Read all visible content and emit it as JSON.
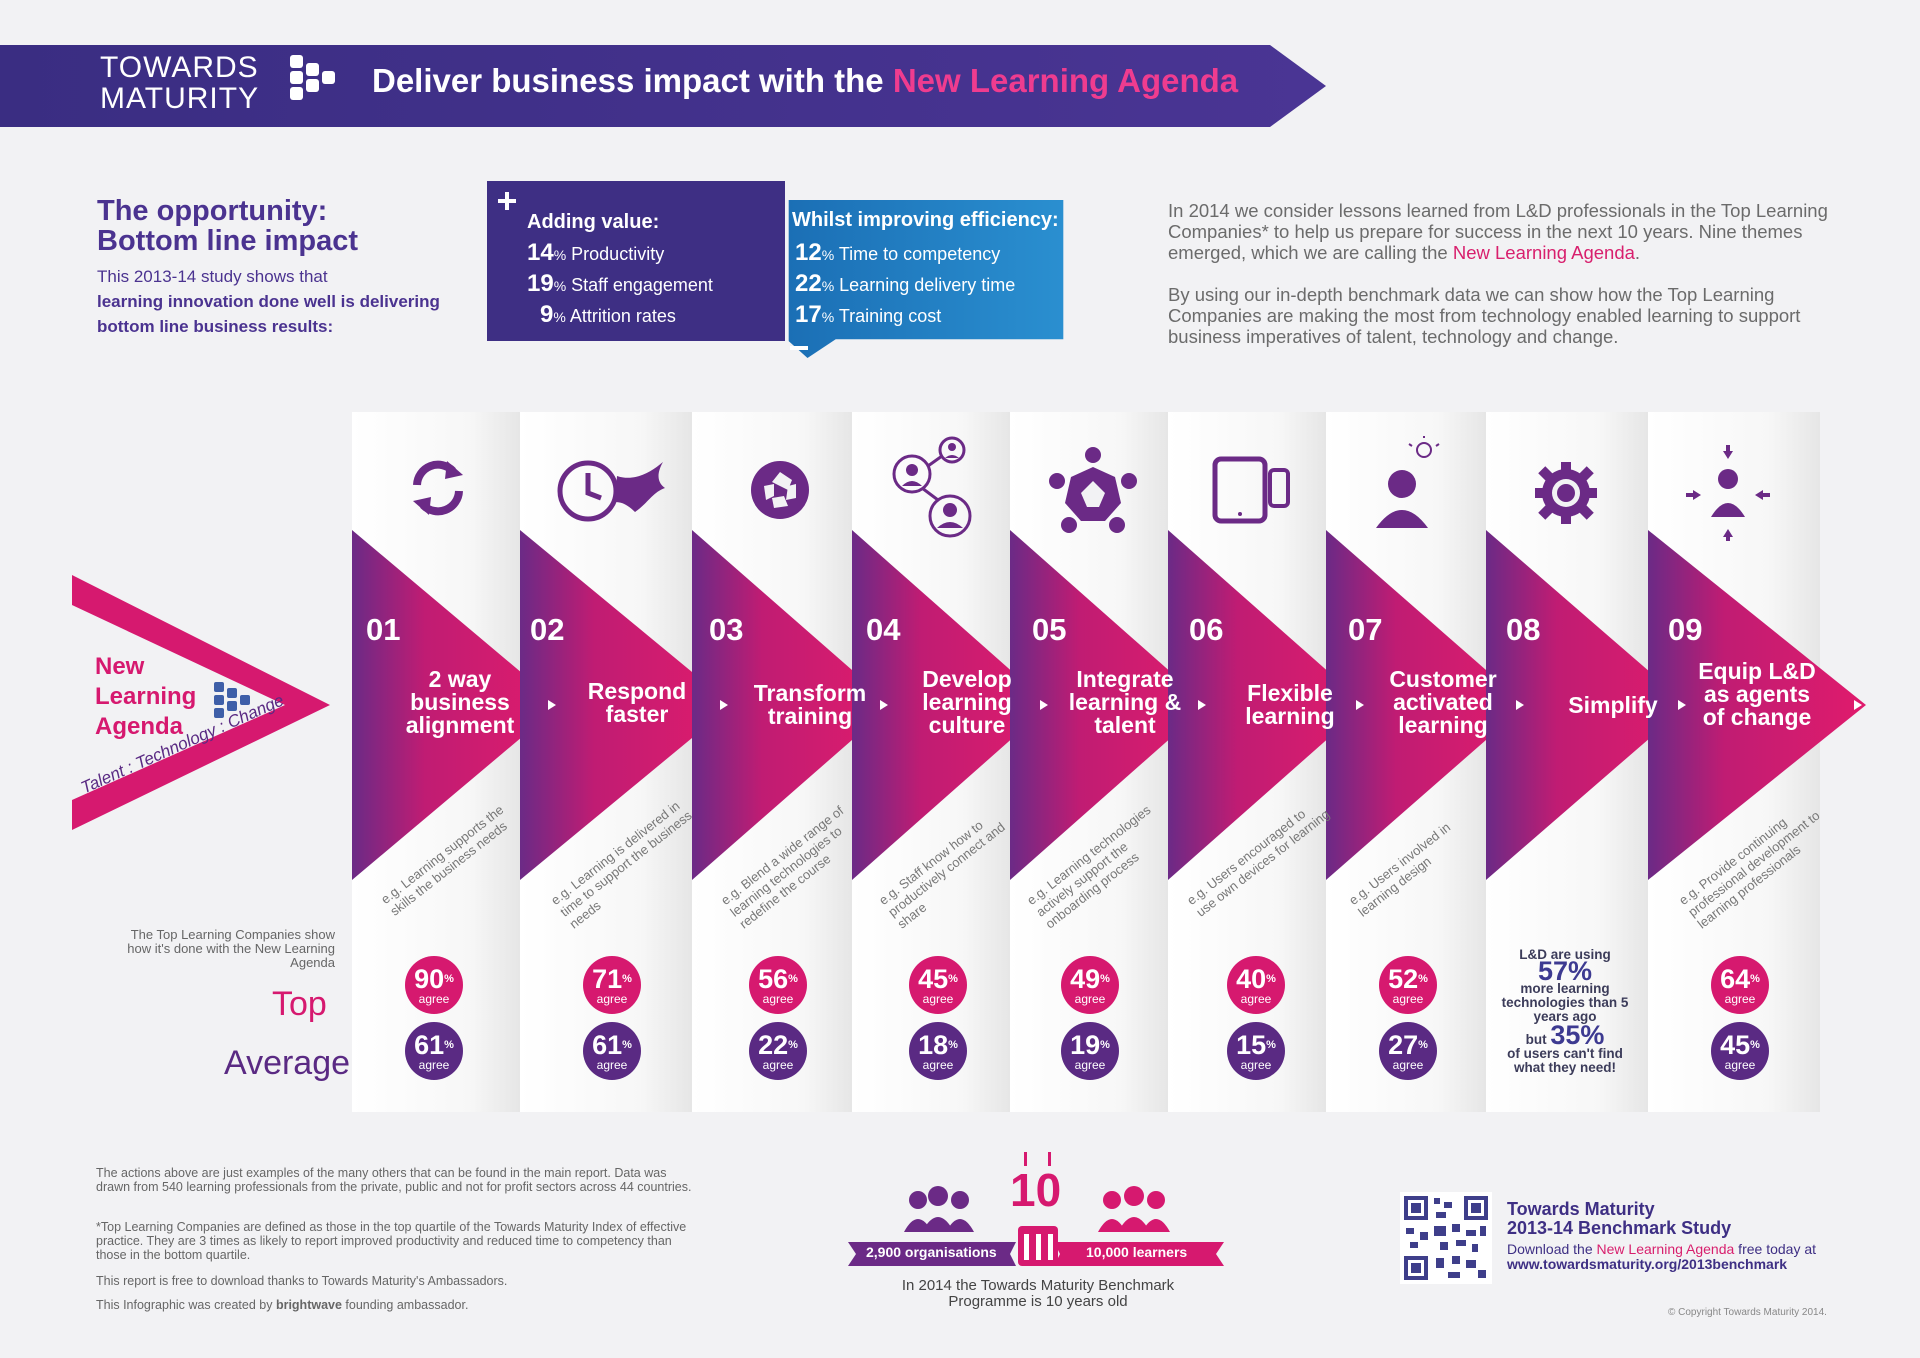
{
  "header": {
    "logo_line1": "TOWARDS",
    "logo_line2": "MATURITY",
    "title_prefix": "Deliver business impact with the ",
    "title_highlight": "New Learning Agenda"
  },
  "opportunity": {
    "heading_line1": "The opportunity:",
    "heading_line2": "Bottom line impact",
    "text_plain": "This 2013-14 study shows that",
    "text_bold": "learning innovation done well is delivering bottom line business results:"
  },
  "adding_value": {
    "title": "Adding value:",
    "items": [
      {
        "value": "14",
        "unit": "%",
        "label": " Productivity"
      },
      {
        "value": "19",
        "unit": "%",
        "label": " Staff engagement"
      },
      {
        "value": "9",
        "unit": "%",
        "label": " Attrition rates"
      }
    ]
  },
  "efficiency": {
    "title": "Whilst improving efficiency:",
    "items": [
      {
        "value": "12",
        "unit": "%",
        "label": " Time to competency"
      },
      {
        "value": "22",
        "unit": "%",
        "label": " Learning delivery time"
      },
      {
        "value": "17",
        "unit": "%",
        "label": " Training cost"
      }
    ]
  },
  "intro": {
    "p1_a": "In 2014 we consider lessons learned from L&D professionals in the Top Learning Companies* to help us prepare for success in the next 10 years. Nine themes emerged, which we are calling the ",
    "p1_highlight": "New Learning Agenda",
    "p1_b": ".",
    "p2": "By using our in-depth benchmark data we can show how the Top Learning Companies are making the most from technology enabled learning to support business imperatives of talent, technology and change."
  },
  "agenda": {
    "line1": "New",
    "line2": "Learning",
    "line3": "Agenda",
    "tagline": "Talent : Technology : Change"
  },
  "themes": [
    {
      "num": "01",
      "title": "2 way business alignment",
      "example": "e.g. Learning supports the skills the business needs",
      "top": "90",
      "avg": "61",
      "icon": "sync-arrows-icon"
    },
    {
      "num": "02",
      "title": "Respond faster",
      "example": "e.g. Learning is delivered in time to support the business needs",
      "top": "71",
      "avg": "61",
      "icon": "fast-clock-icon"
    },
    {
      "num": "03",
      "title": "Transform training",
      "example": "e.g. Blend a wide range of learning technologies to redefine the course",
      "top": "56",
      "avg": "22",
      "icon": "shutter-icon"
    },
    {
      "num": "04",
      "title": "Develop learning culture",
      "example": "e.g. Staff know how to productively connect and share",
      "top": "45",
      "avg": "18",
      "icon": "connected-people-icon"
    },
    {
      "num": "05",
      "title": "Integrate learning & talent",
      "example": "e.g. Learning technologies actively support the onboarding process",
      "top": "49",
      "avg": "19",
      "icon": "team-circle-icon"
    },
    {
      "num": "06",
      "title": "Flexible learning",
      "example": "e.g. Users encouraged to use own devices for learning",
      "top": "40",
      "avg": "15",
      "icon": "devices-icon"
    },
    {
      "num": "07",
      "title": "Customer activated learning",
      "example": "e.g. Users involved in learning design",
      "top": "52",
      "avg": "27",
      "icon": "person-idea-icon"
    },
    {
      "num": "08",
      "title": "Simplify",
      "example": "",
      "top": "",
      "avg": "",
      "icon": "gear-icon"
    },
    {
      "num": "09",
      "title": "Equip L&D as agents of change",
      "example": "e.g. Provide continuing professional development to learning professionals",
      "top": "64",
      "avg": "45",
      "icon": "focus-person-icon"
    }
  ],
  "labels": {
    "agree": "agree",
    "percent": "%",
    "top": "Top",
    "average": "Average",
    "side_note": "The Top Learning Companies show how it's done with the New Learning Agenda"
  },
  "simplify_stats": {
    "line1": "L&D are using",
    "value1": "57%",
    "line2": "more learning technologies than 5 years ago",
    "but": "but ",
    "value2": "35%",
    "line3": "of users can't find what they need!"
  },
  "footer": {
    "note1": "The actions above are just examples of the many others that can be found in the main report. Data was drawn from 540 learning professionals from the private, public and not for profit sectors across 44 countries.",
    "note2": "*Top Learning Companies are defined as those in the top quartile of the Towards Maturity Index of effective practice. They are 3 times as likely to report improved productivity and reduced time to competency than those in the bottom quartile.",
    "note3": "This report is free to download thanks to Towards Maturity's Ambassadors.",
    "note4a": "This Infographic was created by ",
    "note4_brand": "brightwave",
    "note4b": " founding ambassador."
  },
  "benchmark": {
    "orgs": "2,900 organisations",
    "learners": "10,000 learners",
    "ten": "10",
    "caption": "In 2014 the Towards Maturity Benchmark Programme is 10 years old"
  },
  "cta": {
    "title1": "Towards Maturity",
    "title2": "2013-14 Benchmark Study",
    "text_a": "Download the ",
    "text_highlight": "New Learning Agenda",
    "text_b": " free today at",
    "url": "www.towardsmaturity.org/2013benchmark"
  },
  "copyright": "© Copyright Towards Maturity 2014.",
  "colors": {
    "purple": "#3e2f84",
    "pink": "#d6196f",
    "blue": "#1f7fc1",
    "avg_purple": "#5a2a83"
  }
}
